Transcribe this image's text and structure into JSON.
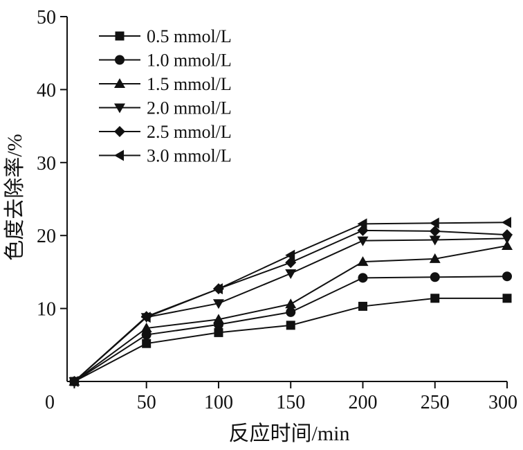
{
  "chart_data": {
    "type": "line",
    "title": "",
    "xlabel": "反应时间/min",
    "ylabel": "色度去除率/%",
    "x": [
      0,
      50,
      100,
      150,
      200,
      250,
      300
    ],
    "xlim": [
      -5,
      300
    ],
    "ylim": [
      0,
      50
    ],
    "xticks": [
      0,
      50,
      100,
      150,
      200,
      250,
      300
    ],
    "yticks": [
      10,
      20,
      30,
      40,
      50
    ],
    "x_tick_labels": [
      "0",
      "50",
      "100",
      "150",
      "200",
      "250",
      "300"
    ],
    "y_tick_labels": [
      "10",
      "20",
      "30",
      "40",
      "50"
    ],
    "grid": false,
    "legend_position": "top-left",
    "line_color": "#111111",
    "series": [
      {
        "name": "0.5 mmol/L",
        "marker": "square",
        "values": [
          0,
          5.2,
          6.7,
          7.7,
          10.3,
          11.4,
          11.4
        ]
      },
      {
        "name": "1.0 mmol/L",
        "marker": "circle",
        "values": [
          0,
          6.4,
          7.8,
          9.5,
          14.2,
          14.3,
          14.4
        ]
      },
      {
        "name": "1.5 mmol/L",
        "marker": "triangle-up",
        "values": [
          0,
          7.3,
          8.5,
          10.6,
          16.4,
          16.8,
          18.6
        ]
      },
      {
        "name": "2.0 mmol/L",
        "marker": "triangle-down",
        "values": [
          0,
          8.8,
          10.7,
          14.8,
          19.3,
          19.4,
          19.6
        ]
      },
      {
        "name": "2.5 mmol/L",
        "marker": "diamond",
        "values": [
          0,
          8.9,
          12.7,
          16.3,
          20.7,
          20.6,
          20.1
        ]
      },
      {
        "name": "3.0 mmol/L",
        "marker": "triangle-left",
        "values": [
          0,
          8.8,
          12.7,
          17.3,
          21.6,
          21.7,
          21.8
        ]
      }
    ]
  }
}
